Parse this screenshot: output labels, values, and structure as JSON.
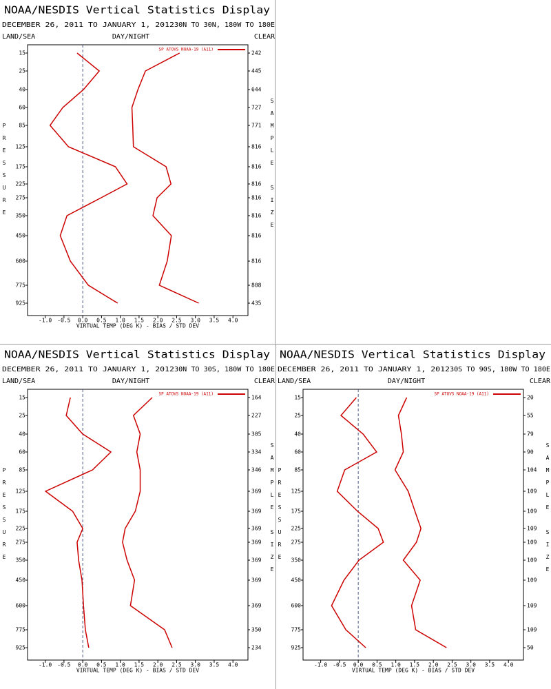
{
  "chart_data": [
    {
      "type": "line",
      "title": "NOAA/NESDIS Vertical Statistics Display",
      "date_range": "DECEMBER 26, 2011 TO JANUARY 1, 2012",
      "region": "30N TO 30N, 180W TO 180E",
      "labels": [
        "LAND/SEA",
        "DAY/NIGHT",
        "CLEAR"
      ],
      "y_label": "PRESSURE",
      "y2_label": "SAMPLE SIZE",
      "x_label": "VIRTUAL TEMP (DEG K) - BIAS / STD DEV",
      "legend": "upper right",
      "categories": [
        15,
        25,
        40,
        60,
        85,
        125,
        175,
        225,
        275,
        350,
        450,
        600,
        775,
        925
      ],
      "sample_size": [
        242,
        445,
        644,
        727,
        771,
        816,
        816,
        816,
        816,
        816,
        816,
        816,
        808,
        435
      ],
      "series": [
        {
          "name": "SP ATOVS NOAA-19 (A11)",
          "color": "#cc0000",
          "bias": [
            -0.15,
            0.44,
            0.02,
            -0.53,
            -0.87,
            -0.38,
            0.87,
            1.18,
            0.49,
            -0.42,
            -0.6,
            -0.33,
            0.15,
            0.93
          ],
          "std_dev": [
            2.58,
            1.67,
            1.47,
            1.31,
            1.33,
            1.35,
            2.22,
            2.35,
            1.98,
            1.87,
            2.36,
            2.25,
            2.04,
            3.09
          ]
        }
      ],
      "xlim": [
        -1.47,
        4.4
      ],
      "xticks": [
        {
          "value": -1,
          "label": "-1.0"
        },
        -0.5,
        {
          "value": 0,
          "label": "0.0"
        },
        0.5,
        {
          "value": 1,
          "label": "1.0"
        },
        1.5,
        {
          "value": 2,
          "label": "2.0"
        },
        2.5,
        {
          "value": 3,
          "label": "3.0"
        },
        3.5,
        {
          "value": 4,
          "label": "4.0"
        }
      ]
    },
    {
      "type": "line",
      "title": "NOAA/NESDIS Vertical Statistics Display",
      "date_range": "DECEMBER 26, 2011 TO JANUARY 1, 2012",
      "region": "30N TO 30S, 180W TO 180E",
      "labels": [
        "LAND/SEA",
        "DAY/NIGHT",
        "CLEAR"
      ],
      "y_label": "PRESSURE",
      "y2_label": "SAMPLE SIZE",
      "x_label": "VIRTUAL TEMP (DEG K) - BIAS / STD DEV",
      "legend": "upper right",
      "categories": [
        15,
        25,
        40,
        60,
        85,
        125,
        175,
        225,
        275,
        350,
        450,
        600,
        775,
        925
      ],
      "sample_size": [
        164,
        227,
        305,
        334,
        346,
        369,
        369,
        369,
        369,
        369,
        369,
        369,
        350,
        234
      ],
      "series": [
        {
          "name": "SP ATOVS NOAA-19 (A11)",
          "color": "#cc0000",
          "bias": [
            -0.33,
            -0.44,
            0,
            0.75,
            0.26,
            -0.99,
            -0.27,
            0,
            -0.15,
            -0.11,
            -0.02,
            0.02,
            0.07,
            0.16
          ],
          "std_dev": [
            1.85,
            1.35,
            1.53,
            1.44,
            1.53,
            1.53,
            1.4,
            1.13,
            1.06,
            1.18,
            1.38,
            1.27,
            2.18,
            2.38
          ]
        }
      ],
      "xlim": [
        -1.47,
        4.4
      ],
      "xticks": [
        {
          "value": -1,
          "label": "-1.0"
        },
        -0.5,
        {
          "value": 0,
          "label": "0.0"
        },
        0.5,
        {
          "value": 1,
          "label": "1.0"
        },
        1.5,
        {
          "value": 2,
          "label": "2.0"
        },
        2.5,
        {
          "value": 3,
          "label": "3.0"
        },
        3.5,
        {
          "value": 4,
          "label": "4.0"
        }
      ]
    },
    {
      "type": "line",
      "title": "NOAA/NESDIS Vertical Statistics Display",
      "date_range": "DECEMBER 26, 2011 TO JANUARY 1, 2012",
      "region": "30S TO 90S, 180W TO 180E",
      "labels": [
        "LAND/SEA",
        "DAY/NIGHT",
        "CLEAR"
      ],
      "y_label": "PRESSURE",
      "y2_label": "SAMPLE SIZE",
      "x_label": "VIRTUAL TEMP (DEG K) - BIAS / STD DEV",
      "legend": "upper right",
      "categories": [
        15,
        25,
        40,
        60,
        85,
        125,
        175,
        225,
        275,
        350,
        450,
        600,
        775,
        925
      ],
      "sample_size": [
        20,
        55,
        79,
        90,
        104,
        109,
        109,
        109,
        109,
        109,
        109,
        109,
        109,
        50
      ],
      "series": [
        {
          "name": "SP ATOVS NOAA-19 (A11)",
          "color": "#cc0000",
          "bias": [
            -0.05,
            -0.46,
            0.13,
            0.49,
            -0.36,
            -0.56,
            -0.02,
            0.53,
            0.67,
            0.02,
            -0.38,
            -0.71,
            -0.33,
            0.2
          ],
          "std_dev": [
            1.29,
            1.07,
            1.15,
            1.2,
            0.98,
            1.33,
            1.51,
            1.67,
            1.55,
            1.2,
            1.65,
            1.42,
            1.53,
            2.35
          ]
        }
      ],
      "xlim": [
        -1.47,
        4.4
      ],
      "xticks": [
        {
          "value": -1,
          "label": "-1.0"
        },
        -0.5,
        {
          "value": 0,
          "label": "0.0"
        },
        0.5,
        {
          "value": 1,
          "label": "1.0"
        },
        1.5,
        {
          "value": 2,
          "label": "2.0"
        },
        2.5,
        {
          "value": 3,
          "label": "3.0"
        },
        3.5,
        {
          "value": 4,
          "label": "4.0"
        }
      ]
    }
  ]
}
